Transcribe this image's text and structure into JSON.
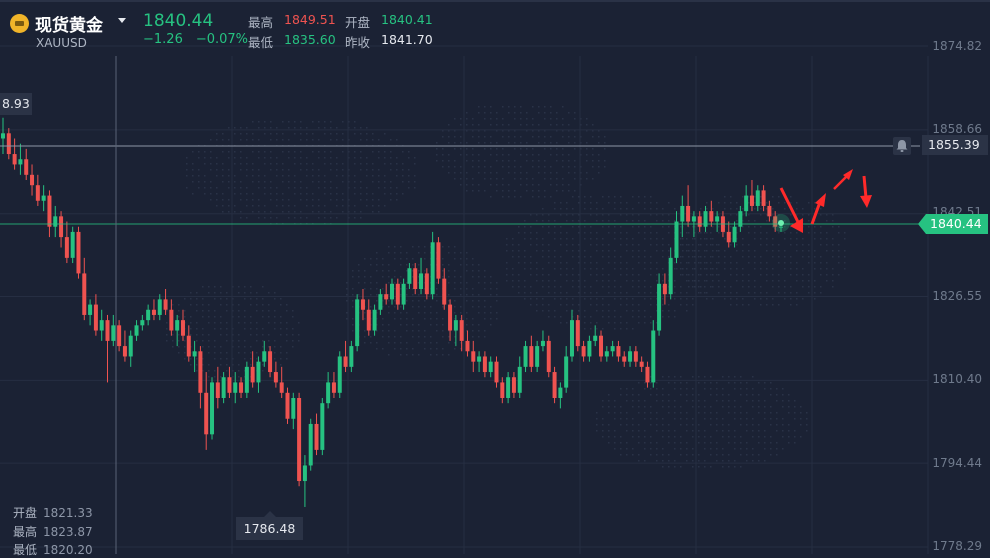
{
  "header": {
    "instrument_name": "现货黄金",
    "symbol": "XAUUSD",
    "price": "1840.44",
    "change": "−1.26",
    "change_percent": "−0.07%",
    "high_label": "最高",
    "high_value": "1849.51",
    "open_label": "开盘",
    "open_value": "1840.41",
    "low_label": "最低",
    "low_value": "1835.60",
    "prev_close_label": "昨收",
    "prev_close_value": "1841.70",
    "icon": "gold-bar-icon",
    "dropdown_icon": "caret-down-icon"
  },
  "price_axis": {
    "labels": [
      "1874.82",
      "1858.66",
      "1842.51",
      "1826.55",
      "1810.40",
      "1794.44",
      "1778.29"
    ],
    "values": [
      1874.82,
      1858.66,
      1842.51,
      1826.55,
      1810.4,
      1794.44,
      1778.29
    ]
  },
  "markers": {
    "alert_price": "1855.39",
    "alert_icon": "bell-icon",
    "current_price": "1840.44",
    "left_edge_price": "8.93",
    "period_low": "1786.48"
  },
  "crosshair_ohlc": {
    "open_label": "开盘",
    "open": "1821.33",
    "high_label": "最高",
    "high": "1823.87",
    "low_label": "最低",
    "low": "1820.20"
  },
  "colors": {
    "background": "#1b2234",
    "up": "#26c281",
    "down": "#ef5350",
    "annotation_arrow": "#ff2a2a"
  },
  "chart_data": {
    "type": "candlestick",
    "y_range": [
      1775,
      1880
    ],
    "candles": [
      [
        1857,
        1861,
        1854,
        1858
      ],
      [
        1858,
        1859,
        1853,
        1854
      ],
      [
        1854,
        1857,
        1851,
        1852
      ],
      [
        1852,
        1856,
        1850,
        1853
      ],
      [
        1853,
        1855,
        1849,
        1850
      ],
      [
        1850,
        1852,
        1846,
        1848
      ],
      [
        1848,
        1850,
        1844,
        1845
      ],
      [
        1845,
        1848,
        1843,
        1846
      ],
      [
        1846,
        1847,
        1838,
        1840
      ],
      [
        1840,
        1844,
        1838,
        1842
      ],
      [
        1842,
        1843,
        1836,
        1838
      ],
      [
        1838,
        1841,
        1833,
        1834
      ],
      [
        1834,
        1840,
        1833,
        1839
      ],
      [
        1839,
        1840,
        1830,
        1831
      ],
      [
        1831,
        1834,
        1822,
        1823
      ],
      [
        1823,
        1826,
        1821,
        1825
      ],
      [
        1825,
        1827,
        1819,
        1820
      ],
      [
        1820,
        1824,
        1818,
        1822
      ],
      [
        1822,
        1823,
        1810,
        1818
      ],
      [
        1818,
        1823,
        1817,
        1821
      ],
      [
        1821,
        1822,
        1816,
        1817
      ],
      [
        1817,
        1820,
        1814,
        1815
      ],
      [
        1815,
        1820,
        1813,
        1819
      ],
      [
        1819,
        1822,
        1818,
        1821
      ],
      [
        1821,
        1823,
        1820,
        1822
      ],
      [
        1822,
        1825,
        1821,
        1824
      ],
      [
        1824,
        1826,
        1822,
        1823
      ],
      [
        1823,
        1827,
        1822,
        1826
      ],
      [
        1826,
        1828,
        1823,
        1824
      ],
      [
        1824,
        1826,
        1819,
        1820
      ],
      [
        1820,
        1823,
        1817,
        1822
      ],
      [
        1822,
        1824,
        1818,
        1819
      ],
      [
        1819,
        1821,
        1814,
        1815
      ],
      [
        1815,
        1818,
        1812,
        1816
      ],
      [
        1816,
        1817,
        1805,
        1808
      ],
      [
        1808,
        1812,
        1797,
        1800
      ],
      [
        1800,
        1811,
        1799,
        1810
      ],
      [
        1810,
        1813,
        1805,
        1807
      ],
      [
        1807,
        1812,
        1806,
        1811
      ],
      [
        1811,
        1813,
        1807,
        1808
      ],
      [
        1808,
        1812,
        1806,
        1810
      ],
      [
        1810,
        1811,
        1807,
        1808
      ],
      [
        1808,
        1814,
        1807,
        1813
      ],
      [
        1813,
        1816,
        1809,
        1810
      ],
      [
        1810,
        1815,
        1808,
        1814
      ],
      [
        1814,
        1818,
        1813,
        1816
      ],
      [
        1816,
        1817,
        1811,
        1812
      ],
      [
        1812,
        1814,
        1809,
        1810
      ],
      [
        1810,
        1813,
        1807,
        1808
      ],
      [
        1808,
        1809,
        1802,
        1803
      ],
      [
        1803,
        1808,
        1801,
        1807
      ],
      [
        1807,
        1808,
        1790,
        1791
      ],
      [
        1791,
        1796,
        1786,
        1794
      ],
      [
        1794,
        1803,
        1793,
        1802
      ],
      [
        1802,
        1804,
        1796,
        1797
      ],
      [
        1797,
        1807,
        1796,
        1806
      ],
      [
        1806,
        1812,
        1805,
        1810
      ],
      [
        1810,
        1812,
        1807,
        1808
      ],
      [
        1808,
        1816,
        1807,
        1815
      ],
      [
        1815,
        1818,
        1812,
        1813
      ],
      [
        1813,
        1818,
        1812,
        1817
      ],
      [
        1817,
        1827,
        1816,
        1826
      ],
      [
        1826,
        1828,
        1822,
        1824
      ],
      [
        1824,
        1826,
        1819,
        1820
      ],
      [
        1820,
        1825,
        1819,
        1824
      ],
      [
        1824,
        1828,
        1823,
        1827
      ],
      [
        1827,
        1829,
        1825,
        1826
      ],
      [
        1826,
        1830,
        1825,
        1829
      ],
      [
        1829,
        1830,
        1824,
        1825
      ],
      [
        1825,
        1830,
        1824,
        1829
      ],
      [
        1829,
        1833,
        1828,
        1832
      ],
      [
        1832,
        1833,
        1827,
        1828
      ],
      [
        1828,
        1834,
        1827,
        1831
      ],
      [
        1831,
        1832,
        1826,
        1827
      ],
      [
        1827,
        1839,
        1826,
        1837
      ],
      [
        1837,
        1838,
        1829,
        1830
      ],
      [
        1830,
        1832,
        1824,
        1825
      ],
      [
        1825,
        1826,
        1818,
        1820
      ],
      [
        1820,
        1823,
        1817,
        1822
      ],
      [
        1822,
        1823,
        1816,
        1818
      ],
      [
        1818,
        1820,
        1815,
        1816
      ],
      [
        1816,
        1818,
        1812,
        1814
      ],
      [
        1814,
        1816,
        1812,
        1815
      ],
      [
        1815,
        1816,
        1811,
        1812
      ],
      [
        1812,
        1815,
        1811,
        1814
      ],
      [
        1814,
        1815,
        1809,
        1810
      ],
      [
        1810,
        1811,
        1806,
        1807
      ],
      [
        1807,
        1812,
        1806,
        1811
      ],
      [
        1811,
        1812,
        1807,
        1808
      ],
      [
        1808,
        1815,
        1807,
        1813
      ],
      [
        1813,
        1818,
        1812,
        1817
      ],
      [
        1817,
        1819,
        1812,
        1813
      ],
      [
        1813,
        1818,
        1812,
        1817
      ],
      [
        1817,
        1820,
        1816,
        1818
      ],
      [
        1818,
        1819,
        1811,
        1812
      ],
      [
        1812,
        1813,
        1806,
        1807
      ],
      [
        1807,
        1810,
        1805,
        1809
      ],
      [
        1809,
        1817,
        1808,
        1815
      ],
      [
        1815,
        1824,
        1814,
        1822
      ],
      [
        1822,
        1823,
        1816,
        1817
      ],
      [
        1817,
        1818,
        1814,
        1815
      ],
      [
        1815,
        1819,
        1814,
        1818
      ],
      [
        1818,
        1821,
        1817,
        1819
      ],
      [
        1819,
        1820,
        1814,
        1815
      ],
      [
        1815,
        1817,
        1814,
        1816
      ],
      [
        1816,
        1818,
        1815,
        1817
      ],
      [
        1817,
        1818,
        1814,
        1815
      ],
      [
        1815,
        1816,
        1813,
        1814
      ],
      [
        1814,
        1817,
        1813,
        1816
      ],
      [
        1816,
        1817,
        1813,
        1814
      ],
      [
        1814,
        1815,
        1812,
        1813
      ],
      [
        1813,
        1814,
        1809,
        1810
      ],
      [
        1810,
        1822,
        1809,
        1820
      ],
      [
        1820,
        1831,
        1819,
        1829
      ],
      [
        1829,
        1831,
        1825,
        1827
      ],
      [
        1827,
        1836,
        1826,
        1834
      ],
      [
        1834,
        1843,
        1833,
        1841
      ],
      [
        1841,
        1846,
        1838,
        1844
      ],
      [
        1844,
        1848,
        1840,
        1841
      ],
      [
        1841,
        1843,
        1838,
        1842
      ],
      [
        1842,
        1843,
        1839,
        1840
      ],
      [
        1840,
        1844,
        1839,
        1843
      ],
      [
        1843,
        1845,
        1840,
        1841
      ],
      [
        1841,
        1843,
        1839,
        1842
      ],
      [
        1842,
        1843,
        1838,
        1839
      ],
      [
        1839,
        1841,
        1836,
        1837
      ],
      [
        1837,
        1841,
        1836,
        1840
      ],
      [
        1840,
        1844,
        1839,
        1843
      ],
      [
        1843,
        1848,
        1842,
        1846
      ],
      [
        1846,
        1849,
        1843,
        1844
      ],
      [
        1844,
        1848,
        1843,
        1847
      ],
      [
        1847,
        1848,
        1843,
        1844
      ],
      [
        1844,
        1845,
        1841,
        1842
      ],
      [
        1842,
        1843,
        1839,
        1840
      ],
      [
        1840,
        1841,
        1839,
        1840
      ]
    ]
  }
}
